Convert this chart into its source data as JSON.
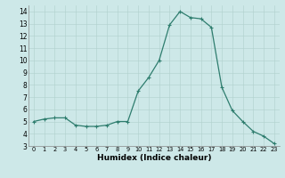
{
  "x": [
    0,
    1,
    2,
    3,
    4,
    5,
    6,
    7,
    8,
    9,
    10,
    11,
    12,
    13,
    14,
    15,
    16,
    17,
    18,
    19,
    20,
    21,
    22,
    23
  ],
  "y": [
    5.0,
    5.2,
    5.3,
    5.3,
    4.7,
    4.6,
    4.6,
    4.7,
    5.0,
    5.0,
    7.5,
    8.6,
    10.0,
    12.9,
    14.0,
    13.5,
    13.4,
    12.7,
    7.8,
    5.9,
    5.0,
    4.2,
    3.8,
    3.2
  ],
  "line_color": "#2e7d6e",
  "marker": "+",
  "markersize": 3.5,
  "linewidth": 0.9,
  "xlabel": "Humidex (Indice chaleur)",
  "xlim": [
    -0.5,
    23.5
  ],
  "ylim": [
    3,
    14.5
  ],
  "yticks": [
    3,
    4,
    5,
    6,
    7,
    8,
    9,
    10,
    11,
    12,
    13,
    14
  ],
  "xticks": [
    0,
    1,
    2,
    3,
    4,
    5,
    6,
    7,
    8,
    9,
    10,
    11,
    12,
    13,
    14,
    15,
    16,
    17,
    18,
    19,
    20,
    21,
    22,
    23
  ],
  "xtick_labels": [
    "0",
    "1",
    "2",
    "3",
    "4",
    "5",
    "6",
    "7",
    "8",
    "9",
    "10",
    "11",
    "12",
    "13",
    "14",
    "15",
    "16",
    "17",
    "18",
    "19",
    "20",
    "21",
    "22",
    "23"
  ],
  "background_color": "#cde8e8",
  "grid_color": "#b0d0cc",
  "grid_linewidth": 0.4,
  "xlabel_fontsize": 6.5,
  "xlabel_fontweight": "bold",
  "xtick_fontsize": 4.8,
  "ytick_fontsize": 5.5
}
